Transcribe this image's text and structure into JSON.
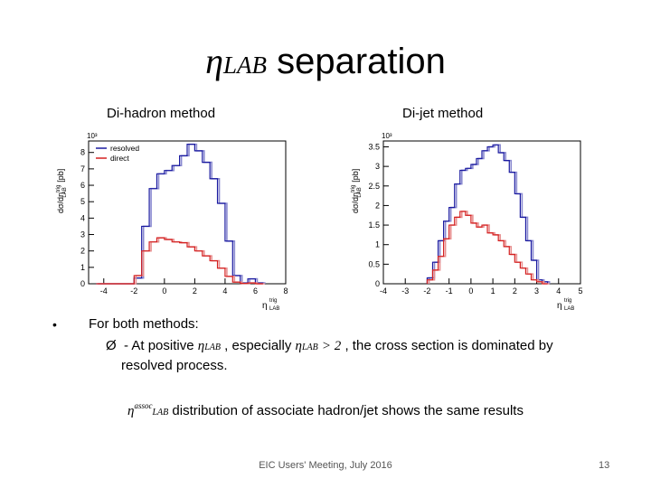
{
  "slide": {
    "title_symbol": "η",
    "title_subscript": "LAB",
    "title_text": " separation",
    "bullet_char": "•",
    "arrow_char": "Ø",
    "for_both": "For  both methods:",
    "at_positive": "- At positive",
    "especially": ", especially",
    "gt2": "> 2",
    "dominated": ", the cross section is dominated by",
    "resolved_process": "resolved process.",
    "assoc_sup": "assoc",
    "distribution_text": "distribution of associate hadron/jet shows the same results",
    "eta_symbol": "η",
    "lab_subscript": "LAB",
    "footer": "EIC Users' Meeting, July 2016",
    "page_number": "13"
  },
  "colors": {
    "resolved": "#1a1aa0",
    "direct": "#d42020",
    "resolved_light": "#8a8ad0",
    "direct_light": "#e89090"
  },
  "chart_data": [
    {
      "type": "histogram",
      "title": "Di-hadron method",
      "ylabel": "dσ/dη",
      "ylabel_sup": "trig",
      "ylabel_sub": "LAB",
      "ylabel_unit": "[pb]",
      "xlabel": "η",
      "xlabel_sup": "trig",
      "xlabel_sub": "LAB",
      "y_exponent": "10³",
      "xlim": [
        -5,
        8
      ],
      "ylim": [
        0,
        8.7
      ],
      "xticks": [
        -4,
        -2,
        0,
        2,
        4,
        6,
        8
      ],
      "yticks": [
        0,
        1,
        2,
        3,
        4,
        5,
        6,
        7,
        8
      ],
      "legend": [
        "resolved",
        "direct"
      ],
      "bins": [
        -4.5,
        -4,
        -3.5,
        -3,
        -2.5,
        -2,
        -1.5,
        -1,
        -0.5,
        0,
        0.5,
        1,
        1.5,
        2,
        2.5,
        3,
        3.5,
        4,
        4.5,
        5,
        5.5,
        6,
        6.5
      ],
      "series": [
        {
          "name": "resolved",
          "values": [
            0,
            0,
            0,
            0,
            0,
            0.35,
            3.5,
            5.8,
            6.7,
            6.9,
            7.2,
            7.8,
            8.5,
            8.1,
            7.4,
            6.4,
            4.9,
            2.6,
            0.5,
            0.05,
            0.3,
            0.05
          ]
        },
        {
          "name": "direct",
          "values": [
            0,
            0,
            0,
            0,
            0,
            0.5,
            2.0,
            2.55,
            2.8,
            2.7,
            2.55,
            2.5,
            2.25,
            2.0,
            1.7,
            1.4,
            0.95,
            0.45,
            0.1,
            0.02,
            0.05,
            0
          ]
        }
      ]
    },
    {
      "type": "histogram",
      "title": "Di-jet method",
      "ylabel": "dσ/dη",
      "ylabel_sup": "trig",
      "ylabel_sub": "LAB",
      "ylabel_unit": "[pb]",
      "xlabel": "η",
      "xlabel_sup": "trig",
      "xlabel_sub": "LAB",
      "y_exponent": "10³",
      "xlim": [
        -4,
        5
      ],
      "ylim": [
        0,
        3.65
      ],
      "xticks": [
        -4,
        -3,
        -2,
        -1,
        0,
        1,
        2,
        3,
        4,
        5
      ],
      "yticks": [
        0,
        0.5,
        1,
        1.5,
        2,
        2.5,
        3,
        3.5
      ],
      "bins": [
        -2,
        -1.75,
        -1.5,
        -1.25,
        -1,
        -0.75,
        -0.5,
        -0.25,
        0,
        0.25,
        0.5,
        0.75,
        1,
        1.25,
        1.5,
        1.75,
        2,
        2.25,
        2.5,
        2.75,
        3,
        3.25,
        3.5
      ],
      "series": [
        {
          "name": "resolved",
          "values": [
            0.15,
            0.55,
            1.1,
            1.6,
            1.95,
            2.55,
            2.9,
            2.95,
            3.05,
            3.2,
            3.4,
            3.5,
            3.55,
            3.35,
            3.15,
            2.85,
            2.3,
            1.7,
            1.1,
            0.6,
            0.1,
            0.05
          ]
        },
        {
          "name": "direct",
          "values": [
            0.1,
            0.35,
            0.7,
            1.15,
            1.5,
            1.7,
            1.85,
            1.75,
            1.55,
            1.45,
            1.5,
            1.3,
            1.25,
            1.1,
            0.95,
            0.75,
            0.55,
            0.4,
            0.25,
            0.1,
            0.05,
            0
          ]
        }
      ]
    }
  ]
}
